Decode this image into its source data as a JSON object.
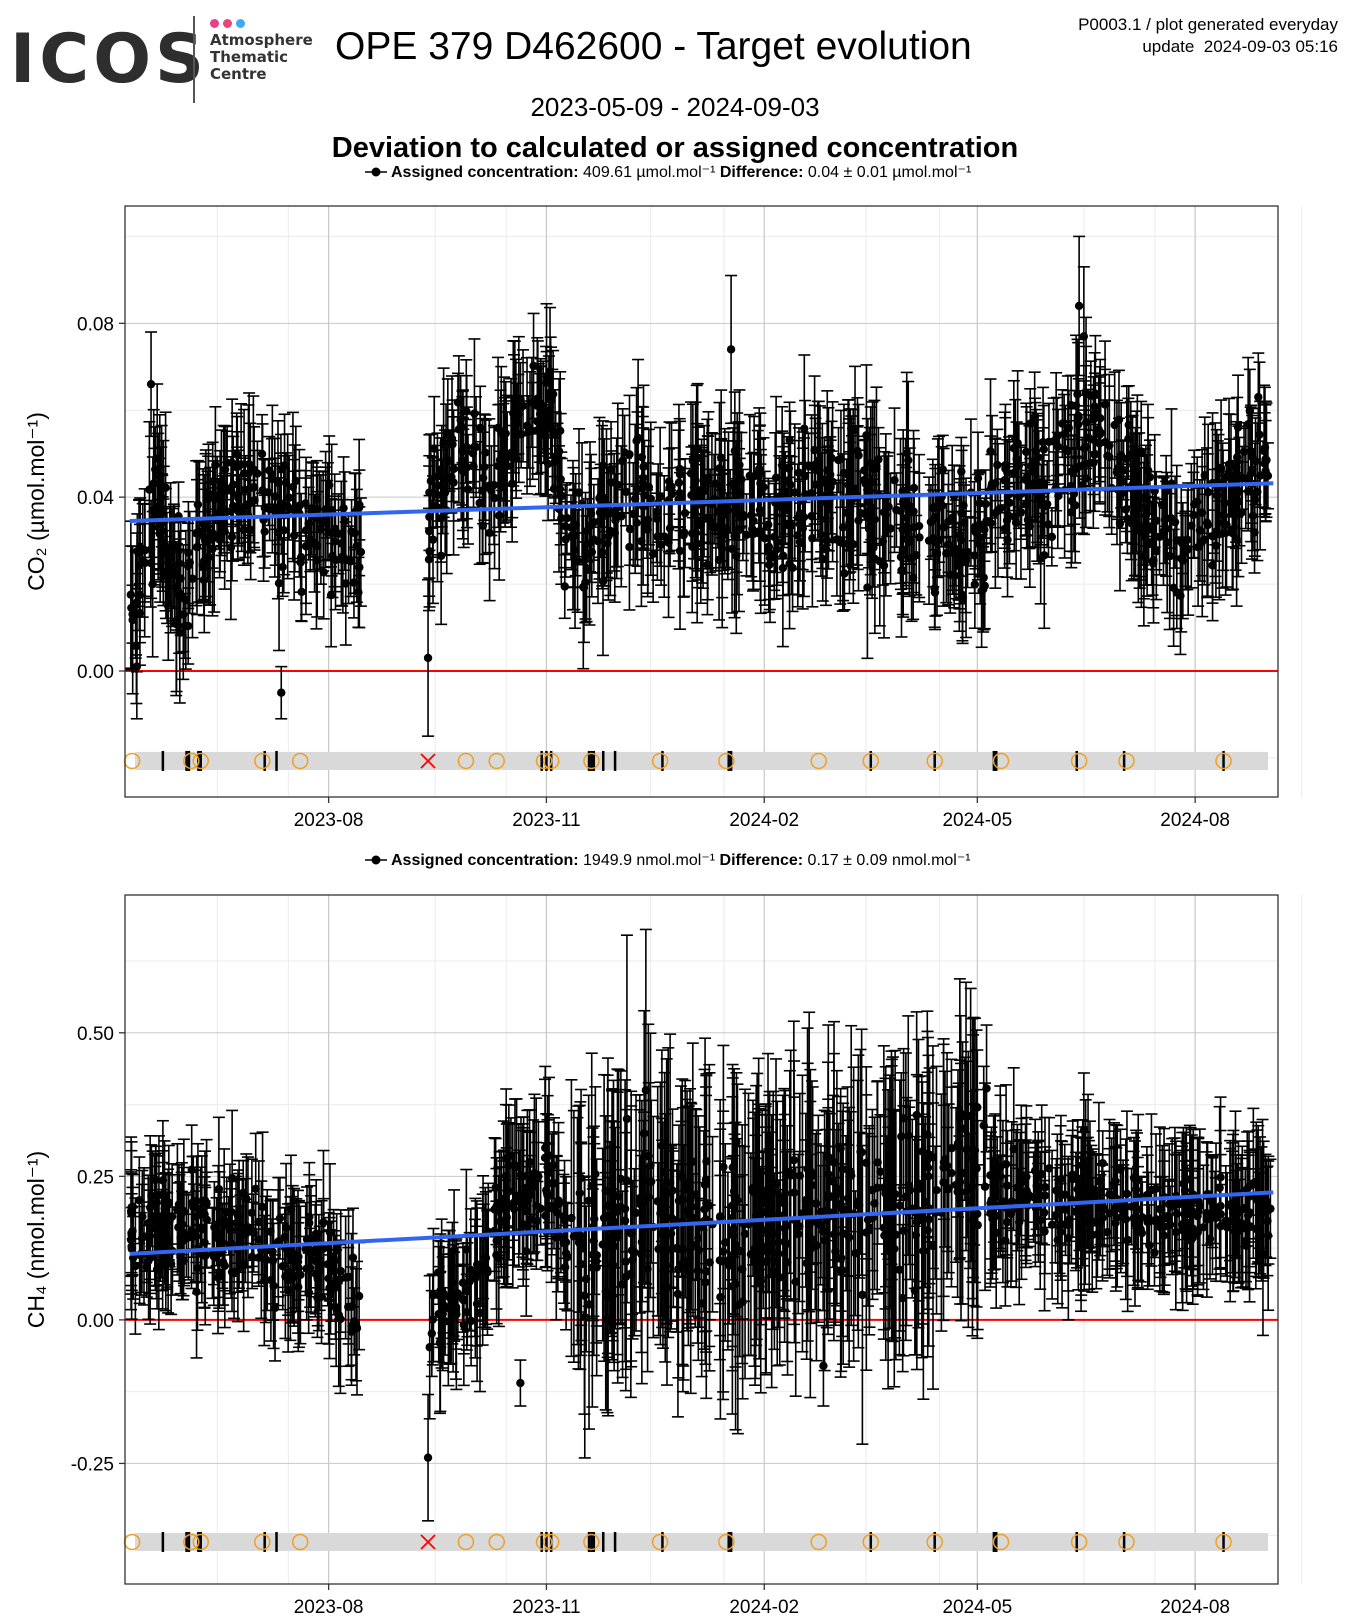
{
  "header": {
    "logo_text": "ICOS",
    "logo_sub_lines": [
      "Atmosphere",
      "Thematic",
      "Centre"
    ],
    "logo_dot_colors": [
      "#e83e8c",
      "#e8457a",
      "#3fa9f5"
    ],
    "title": "OPE 379 D462600 - Target evolution",
    "meta_line1": "P0003.1 / plot generated everyday",
    "meta_line2": "update  2024-09-03 05:16",
    "date_range": "2023-05-09 - 2024-09-03",
    "section_title": "Deviation to calculated or assigned concentration"
  },
  "colors": {
    "points": "#000000",
    "trend": "#3366ee",
    "zero_line": "#ff0000",
    "marker_circle": "#f0a020",
    "marker_cross": "#ff0000",
    "marker_band": "#d9d9d9",
    "grid_major": "#c8c8c8",
    "grid_minor": "#ebebeb"
  },
  "event_markers": {
    "bars": [
      "2023-05-23",
      "2023-06-02",
      "2023-06-03",
      "2023-06-07",
      "2023-06-08",
      "2023-07-05",
      "2023-07-10",
      "2023-10-30",
      "2023-11-01",
      "2023-11-03",
      "2023-11-19",
      "2023-11-20",
      "2023-11-21",
      "2023-11-25",
      "2023-11-30",
      "2023-12-20",
      "2024-01-17",
      "2024-01-18",
      "2024-03-17",
      "2024-04-13",
      "2024-05-08",
      "2024-05-09",
      "2024-06-12",
      "2024-07-02",
      "2024-08-13"
    ],
    "circles": [
      "2023-05-10",
      "2023-06-04",
      "2023-06-08",
      "2023-07-04",
      "2023-07-20",
      "2023-09-28",
      "2023-10-11",
      "2023-10-31",
      "2023-11-03",
      "2023-11-20",
      "2023-12-19",
      "2024-01-16",
      "2024-02-24",
      "2024-03-17",
      "2024-04-13",
      "2024-05-11",
      "2024-06-13",
      "2024-07-03",
      "2024-08-13"
    ],
    "crosses": [
      "2023-09-12"
    ]
  },
  "chart_data": [
    {
      "type": "scatter",
      "title": "",
      "legend": {
        "label_bold": "Assigned concentration:",
        "label_value": "409.61 µmol.mol⁻¹",
        "difference_bold": "Difference:",
        "difference_value": "0.04 ± 0.01 µmol.mol⁻¹"
      },
      "xlabel": "",
      "ylabel": "CO₂ (µmol.mol⁻¹)",
      "x_range": [
        "2023-05-07",
        "2024-09-05"
      ],
      "ylim": [
        -0.029,
        0.107
      ],
      "y_ticks": [
        0.0,
        0.04,
        0.08
      ],
      "y_tick_labels": [
        "0.00",
        "0.04",
        "0.08"
      ],
      "x_ticks": [
        "2023-08-01",
        "2023-11-01",
        "2024-02-01",
        "2024-05-01",
        "2024-08-01"
      ],
      "x_tick_labels": [
        "2023-08",
        "2023-11",
        "2024-02",
        "2024-05",
        "2024-08"
      ],
      "trend": {
        "x": [
          "2023-05-09",
          "2024-09-03"
        ],
        "y": [
          0.0345,
          0.0432
        ]
      },
      "zero_line": 0,
      "segments": [
        {
          "start": "2023-05-09",
          "end": "2023-08-15",
          "knots": [
            [
              "2023-05-09",
              0.01
            ],
            [
              "2023-05-20",
              0.038
            ],
            [
              "2023-06-01",
              0.018
            ],
            [
              "2023-06-15",
              0.04
            ],
            [
              "2023-07-01",
              0.043
            ],
            [
              "2023-07-15",
              0.033
            ],
            [
              "2023-08-01",
              0.032
            ],
            [
              "2023-08-15",
              0.028
            ]
          ],
          "spread": 0.01,
          "err": 0.012,
          "seed": 11
        },
        {
          "start": "2023-09-12",
          "end": "2023-11-10",
          "knots": [
            [
              "2023-09-12",
              0.034
            ],
            [
              "2023-09-25",
              0.052
            ],
            [
              "2023-10-10",
              0.046
            ],
            [
              "2023-10-20",
              0.058
            ],
            [
              "2023-11-01",
              0.062
            ],
            [
              "2023-11-10",
              0.03
            ]
          ],
          "spread": 0.01,
          "err": 0.012,
          "seed": 23
        },
        {
          "start": "2023-11-11",
          "end": "2024-05-05",
          "knots": [
            [
              "2023-11-11",
              0.03
            ],
            [
              "2023-12-01",
              0.038
            ],
            [
              "2024-01-01",
              0.038
            ],
            [
              "2024-02-01",
              0.036
            ],
            [
              "2024-03-01",
              0.04
            ],
            [
              "2024-04-01",
              0.036
            ],
            [
              "2024-05-01",
              0.03
            ]
          ],
          "spread": 0.011,
          "err": 0.013,
          "seed": 37
        },
        {
          "start": "2024-05-06",
          "end": "2024-09-02",
          "knots": [
            [
              "2024-05-06",
              0.04
            ],
            [
              "2024-06-01",
              0.044
            ],
            [
              "2024-06-20",
              0.055
            ],
            [
              "2024-07-10",
              0.038
            ],
            [
              "2024-07-25",
              0.028
            ],
            [
              "2024-08-15",
              0.04
            ],
            [
              "2024-09-02",
              0.052
            ]
          ],
          "spread": 0.01,
          "err": 0.012,
          "seed": 53
        }
      ],
      "extra_points": [
        [
          "2023-09-12",
          0.003,
          0.018
        ],
        [
          "2023-07-12",
          -0.005,
          0.006
        ],
        [
          "2024-06-13",
          0.084,
          0.016
        ],
        [
          "2024-06-15",
          0.077,
          0.016
        ],
        [
          "2024-01-18",
          0.074,
          0.017
        ],
        [
          "2023-05-18",
          0.066,
          0.012
        ],
        [
          "2023-05-12",
          0.001,
          0.012
        ]
      ]
    },
    {
      "type": "scatter",
      "title": "",
      "legend": {
        "label_bold": "Assigned concentration:",
        "label_value": "1949.9 nmol.mol⁻¹",
        "difference_bold": "Difference:",
        "difference_value": "0.17 ± 0.09 nmol.mol⁻¹"
      },
      "xlabel": "",
      "ylabel": "CH₄ (nmol.mol⁻¹)",
      "x_range": [
        "2023-05-07",
        "2024-09-05"
      ],
      "ylim": [
        -0.46,
        0.74
      ],
      "y_ticks": [
        -0.25,
        0.0,
        0.25,
        0.5
      ],
      "y_tick_labels": [
        "-0.25",
        "0.00",
        "0.25",
        "0.50"
      ],
      "x_ticks": [
        "2023-08-01",
        "2023-11-01",
        "2024-02-01",
        "2024-05-01",
        "2024-08-01"
      ],
      "x_tick_labels": [
        "2023-08",
        "2023-11",
        "2024-02",
        "2024-05",
        "2024-08"
      ],
      "trend": {
        "x": [
          "2023-05-09",
          "2024-09-03"
        ],
        "y": [
          0.115,
          0.222
        ]
      },
      "zero_line": 0,
      "segments": [
        {
          "start": "2023-05-09",
          "end": "2023-08-15",
          "knots": [
            [
              "2023-05-09",
              0.17
            ],
            [
              "2023-06-01",
              0.16
            ],
            [
              "2023-07-01",
              0.14
            ],
            [
              "2023-07-20",
              0.1
            ],
            [
              "2023-08-15",
              0.04
            ]
          ],
          "spread": 0.06,
          "err": 0.09,
          "seed": 71
        },
        {
          "start": "2023-09-12",
          "end": "2023-11-10",
          "knots": [
            [
              "2023-09-12",
              0.02
            ],
            [
              "2023-09-25",
              0.03
            ],
            [
              "2023-10-05",
              0.08
            ],
            [
              "2023-10-15",
              0.2
            ],
            [
              "2023-11-01",
              0.24
            ],
            [
              "2023-11-10",
              0.12
            ]
          ],
          "spread": 0.06,
          "err": 0.1,
          "seed": 83
        },
        {
          "start": "2023-11-11",
          "end": "2024-05-05",
          "knots": [
            [
              "2023-11-11",
              0.13
            ],
            [
              "2023-12-15",
              0.18
            ],
            [
              "2024-01-15",
              0.16
            ],
            [
              "2024-02-15",
              0.2
            ],
            [
              "2024-03-15",
              0.18
            ],
            [
              "2024-04-15",
              0.24
            ],
            [
              "2024-05-05",
              0.25
            ]
          ],
          "spread": 0.09,
          "err": 0.18,
          "seed": 97
        },
        {
          "start": "2024-05-06",
          "end": "2024-09-02",
          "knots": [
            [
              "2024-05-06",
              0.22
            ],
            [
              "2024-06-01",
              0.21
            ],
            [
              "2024-07-01",
              0.2
            ],
            [
              "2024-08-01",
              0.18
            ],
            [
              "2024-09-02",
              0.19
            ]
          ],
          "spread": 0.05,
          "err": 0.1,
          "seed": 113
        }
      ],
      "extra_points": [
        [
          "2023-09-12",
          -0.24,
          0.11
        ],
        [
          "2023-10-21",
          -0.11,
          0.04
        ],
        [
          "2023-12-13",
          0.4,
          0.28
        ],
        [
          "2023-12-05",
          0.35,
          0.32
        ],
        [
          "2024-02-26",
          -0.08,
          0.07
        ],
        [
          "2024-06-15",
          0.33,
          0.1
        ],
        [
          "2024-05-01",
          0.37,
          0.1
        ]
      ]
    }
  ]
}
